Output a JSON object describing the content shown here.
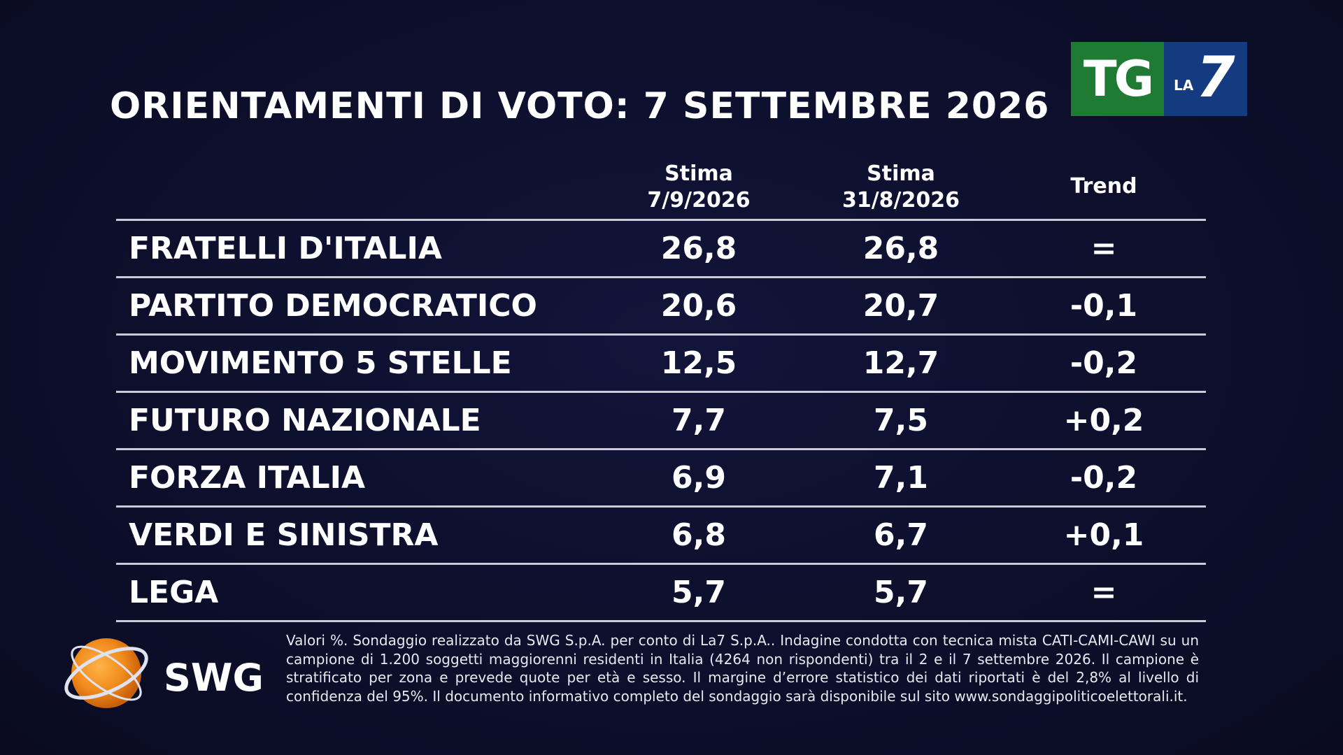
{
  "title": "ORIENTAMENTI DI VOTO: 7 SETTEMBRE 2026",
  "logo": {
    "tg": "TG",
    "la_small": "LA",
    "la_big": "7",
    "colors": {
      "tg_bg": "#1f7a34",
      "la7_bg": "#143a80"
    }
  },
  "columns": {
    "current_line1": "Stima",
    "current_line2": "7/9/2026",
    "previous_line1": "Stima",
    "previous_line2": "31/8/2026",
    "trend": "Trend"
  },
  "rows": [
    {
      "party": "FRATELLI D'ITALIA",
      "current": "26,8",
      "previous": "26,8",
      "trend": "="
    },
    {
      "party": "PARTITO DEMOCRATICO",
      "current": "20,6",
      "previous": "20,7",
      "trend": "-0,1"
    },
    {
      "party": "MOVIMENTO 5 STELLE",
      "current": "12,5",
      "previous": "12,7",
      "trend": "-0,2"
    },
    {
      "party": "FUTURO NAZIONALE",
      "current": "7,7",
      "previous": "7,5",
      "trend": "+0,2"
    },
    {
      "party": "FORZA ITALIA",
      "current": "6,9",
      "previous": "7,1",
      "trend": "-0,2"
    },
    {
      "party": "VERDI E SINISTRA",
      "current": "6,8",
      "previous": "6,7",
      "trend": "+0,1"
    },
    {
      "party": "LEGA",
      "current": "5,7",
      "previous": "5,7",
      "trend": "="
    }
  ],
  "swg": {
    "name": "SWG"
  },
  "footnote": "Valori %. Sondaggio realizzato da SWG S.p.A. per conto di La7 S.p.A.. Indagine condotta con tecnica mista CATI-CAMI-CAWI su un campione di 1.200 soggetti maggiorenni residenti in Italia (4264 non rispondenti) tra il 2 e il 7 settembre 2026. Il campione è stratificato per zona e prevede quote per età e sesso. Il margine d’errore statistico dei dati riportati è del 2,8% al livello di confidenza del 95%. Il documento informativo completo del sondaggio sarà disponibile sul sito www.sondaggipoliticoelettorali.it.",
  "chart_data": {
    "type": "table",
    "title": "ORIENTAMENTI DI VOTO: 7 SETTEMBRE 2026",
    "columns": [
      "Stima 7/9/2026",
      "Stima 31/8/2026",
      "Trend"
    ],
    "categories": [
      "FRATELLI D'ITALIA",
      "PARTITO DEMOCRATICO",
      "MOVIMENTO 5 STELLE",
      "FUTURO NAZIONALE",
      "FORZA ITALIA",
      "VERDI E SINISTRA",
      "LEGA"
    ],
    "series": [
      {
        "name": "Stima 7/9/2026",
        "values": [
          26.8,
          20.6,
          12.5,
          7.7,
          6.9,
          6.8,
          5.7
        ]
      },
      {
        "name": "Stima 31/8/2026",
        "values": [
          26.8,
          20.7,
          12.7,
          7.5,
          7.1,
          6.7,
          5.7
        ]
      },
      {
        "name": "Trend",
        "values": [
          0,
          -0.1,
          -0.2,
          0.2,
          -0.2,
          0.1,
          0
        ]
      }
    ]
  }
}
